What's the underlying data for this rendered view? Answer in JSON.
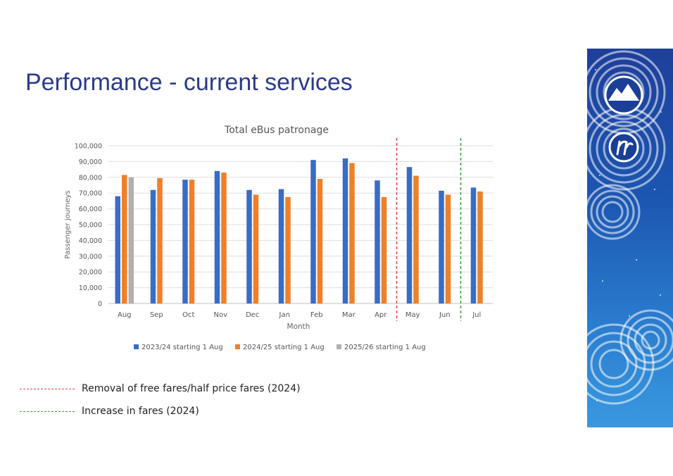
{
  "slide": {
    "title": "Performance - current services"
  },
  "notes": [
    {
      "text": "Removal of free fares/half price fares (2024)",
      "color": "#e8434c"
    },
    {
      "text": "Increase in fares (2024)",
      "color": "#3a9a3a"
    }
  ],
  "colors": {
    "title": "#2a3a8c",
    "panel": "#1e4fa8"
  },
  "chart_data": {
    "type": "bar",
    "title": "Total eBus patronage",
    "xlabel": "Month",
    "ylabel": "Passenger journeys",
    "ylim": [
      0,
      100000
    ],
    "yticks": [
      0,
      10000,
      20000,
      30000,
      40000,
      50000,
      60000,
      70000,
      80000,
      90000,
      100000
    ],
    "ytick_labels": [
      "0",
      "10,000",
      "20,000",
      "30,000",
      "40,000",
      "50,000",
      "60,000",
      "70,000",
      "80,000",
      "90,000",
      "100,000"
    ],
    "grid": true,
    "legend_position": "bottom",
    "categories": [
      "Aug",
      "Sep",
      "Oct",
      "Nov",
      "Dec",
      "Jan",
      "Feb",
      "Mar",
      "Apr",
      "May",
      "Jun",
      "Jul"
    ],
    "series": [
      {
        "name": "2023/24 starting 1 Aug",
        "color": "#3a6cc6",
        "values": [
          68000,
          72000,
          78500,
          84000,
          72000,
          72500,
          91000,
          92000,
          78000,
          86500,
          71500,
          73500
        ]
      },
      {
        "name": "2024/25 starting 1 Aug",
        "color": "#f07f2a",
        "values": [
          81500,
          79500,
          78500,
          83000,
          69000,
          67500,
          79000,
          89000,
          67500,
          81000,
          69000,
          71000
        ]
      },
      {
        "name": "2025/26 starting 1 Aug",
        "color": "#b0b0b0",
        "values": [
          80000,
          null,
          null,
          null,
          null,
          null,
          null,
          null,
          null,
          null,
          null,
          null
        ]
      }
    ],
    "reference_lines": [
      {
        "between": [
          "Apr",
          "May"
        ],
        "color": "#e8434c",
        "style": "dashed"
      },
      {
        "between": [
          "Jun",
          "Jul"
        ],
        "color": "#3a9a3a",
        "style": "dashed"
      }
    ]
  }
}
